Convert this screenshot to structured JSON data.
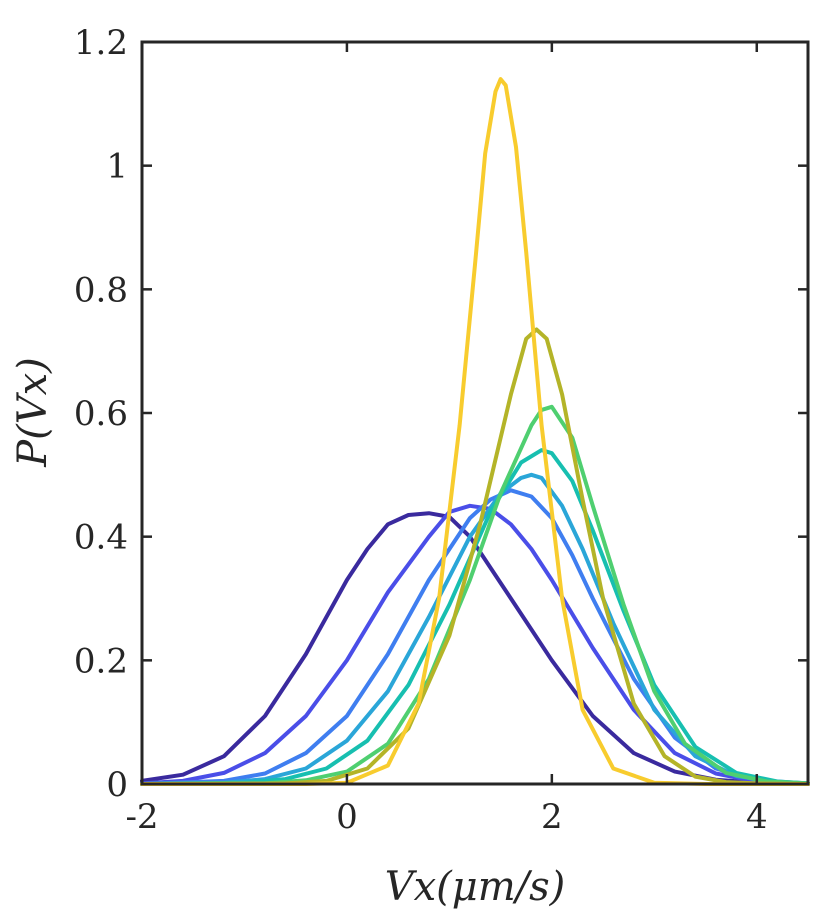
{
  "chart_data": {
    "type": "line",
    "title": "",
    "xlabel": "Vx(μm/s)",
    "ylabel": "P(Vx)",
    "xlim": [
      -2,
      4.5
    ],
    "ylim": [
      0,
      1.2
    ],
    "xticks": [
      -2,
      0,
      2,
      4
    ],
    "xtick_labels": [
      "-2",
      "0",
      "2",
      "4"
    ],
    "yticks": [
      0,
      0.2,
      0.4,
      0.6,
      0.8,
      1.0,
      1.2
    ],
    "ytick_labels": [
      "0",
      "0.2",
      "0.4",
      "0.6",
      "0.8",
      "1",
      "1.2"
    ],
    "grid": false,
    "legend": "none",
    "series": [
      {
        "color": "#3a2a9e",
        "x": [
          -2,
          -1.6,
          -1.2,
          -0.8,
          -0.4,
          0,
          0.2,
          0.4,
          0.6,
          0.8,
          1.0,
          1.2,
          1.4,
          1.6,
          2.0,
          2.4,
          2.8,
          3.2,
          3.6,
          4.0,
          4.5
        ],
        "values": [
          0.005,
          0.015,
          0.045,
          0.11,
          0.21,
          0.33,
          0.38,
          0.42,
          0.435,
          0.438,
          0.432,
          0.4,
          0.35,
          0.3,
          0.2,
          0.11,
          0.05,
          0.02,
          0.007,
          0.002,
          0.0
        ]
      },
      {
        "color": "#4a4ee8",
        "x": [
          -2,
          -1.6,
          -1.2,
          -0.8,
          -0.4,
          0,
          0.4,
          0.8,
          1.0,
          1.2,
          1.4,
          1.6,
          1.8,
          2.0,
          2.4,
          2.8,
          3.2,
          3.6,
          4.0,
          4.5
        ],
        "values": [
          0.001,
          0.005,
          0.018,
          0.05,
          0.11,
          0.2,
          0.31,
          0.4,
          0.44,
          0.45,
          0.445,
          0.42,
          0.38,
          0.33,
          0.22,
          0.12,
          0.05,
          0.017,
          0.004,
          0.0
        ]
      },
      {
        "color": "#3f7ef0",
        "x": [
          -2,
          -1.2,
          -0.8,
          -0.4,
          0,
          0.4,
          0.8,
          1.2,
          1.4,
          1.6,
          1.8,
          2.0,
          2.2,
          2.4,
          2.8,
          3.2,
          3.6,
          4.0,
          4.5
        ],
        "values": [
          0,
          0.005,
          0.017,
          0.05,
          0.11,
          0.21,
          0.33,
          0.43,
          0.46,
          0.475,
          0.465,
          0.43,
          0.37,
          0.3,
          0.17,
          0.075,
          0.025,
          0.006,
          0.001
        ]
      },
      {
        "color": "#2aa6d8",
        "x": [
          -2,
          -1.2,
          -0.8,
          -0.4,
          0,
          0.4,
          0.8,
          1.2,
          1.5,
          1.7,
          1.8,
          1.9,
          2.1,
          2.3,
          2.6,
          3.0,
          3.4,
          3.8,
          4.2,
          4.5
        ],
        "values": [
          0,
          0.002,
          0.008,
          0.025,
          0.07,
          0.15,
          0.27,
          0.4,
          0.47,
          0.495,
          0.5,
          0.495,
          0.45,
          0.38,
          0.26,
          0.12,
          0.045,
          0.013,
          0.003,
          0.001
        ]
      },
      {
        "color": "#17bfb0",
        "x": [
          -2,
          -1.0,
          -0.6,
          -0.2,
          0.2,
          0.6,
          1.0,
          1.4,
          1.7,
          1.9,
          2.0,
          2.2,
          2.4,
          2.7,
          3.0,
          3.4,
          3.8,
          4.2,
          4.5
        ],
        "values": [
          0,
          0.002,
          0.008,
          0.025,
          0.07,
          0.16,
          0.29,
          0.44,
          0.52,
          0.54,
          0.535,
          0.49,
          0.41,
          0.28,
          0.16,
          0.06,
          0.018,
          0.004,
          0.001
        ]
      },
      {
        "color": "#4fcf70",
        "x": [
          -2,
          -0.8,
          -0.4,
          0,
          0.4,
          0.8,
          1.2,
          1.5,
          1.8,
          1.9,
          2.0,
          2.2,
          2.4,
          2.7,
          3.0,
          3.3,
          3.7,
          4.1,
          4.5
        ],
        "values": [
          0,
          0.001,
          0.006,
          0.02,
          0.065,
          0.17,
          0.33,
          0.47,
          0.58,
          0.605,
          0.61,
          0.56,
          0.45,
          0.29,
          0.15,
          0.065,
          0.018,
          0.004,
          0.001
        ]
      },
      {
        "color": "#b4b428",
        "x": [
          -2,
          -0.6,
          -0.2,
          0.2,
          0.6,
          1.0,
          1.3,
          1.6,
          1.75,
          1.85,
          1.95,
          2.1,
          2.3,
          2.5,
          2.8,
          3.1,
          3.4,
          3.7,
          4.0,
          4.5
        ],
        "values": [
          0,
          0.001,
          0.005,
          0.025,
          0.09,
          0.24,
          0.42,
          0.63,
          0.72,
          0.735,
          0.72,
          0.63,
          0.46,
          0.3,
          0.13,
          0.045,
          0.012,
          0.003,
          0.001,
          0
        ]
      },
      {
        "color": "#f8cc2e",
        "x": [
          -2,
          -0.4,
          0,
          0.4,
          0.7,
          0.9,
          1.1,
          1.25,
          1.35,
          1.45,
          1.5,
          1.55,
          1.65,
          1.75,
          1.9,
          2.1,
          2.3,
          2.6,
          3.0,
          3.5,
          4.5
        ],
        "values": [
          0,
          0,
          0.002,
          0.03,
          0.13,
          0.3,
          0.58,
          0.84,
          1.02,
          1.12,
          1.14,
          1.13,
          1.03,
          0.86,
          0.58,
          0.3,
          0.12,
          0.025,
          0.002,
          0,
          0
        ]
      }
    ]
  }
}
